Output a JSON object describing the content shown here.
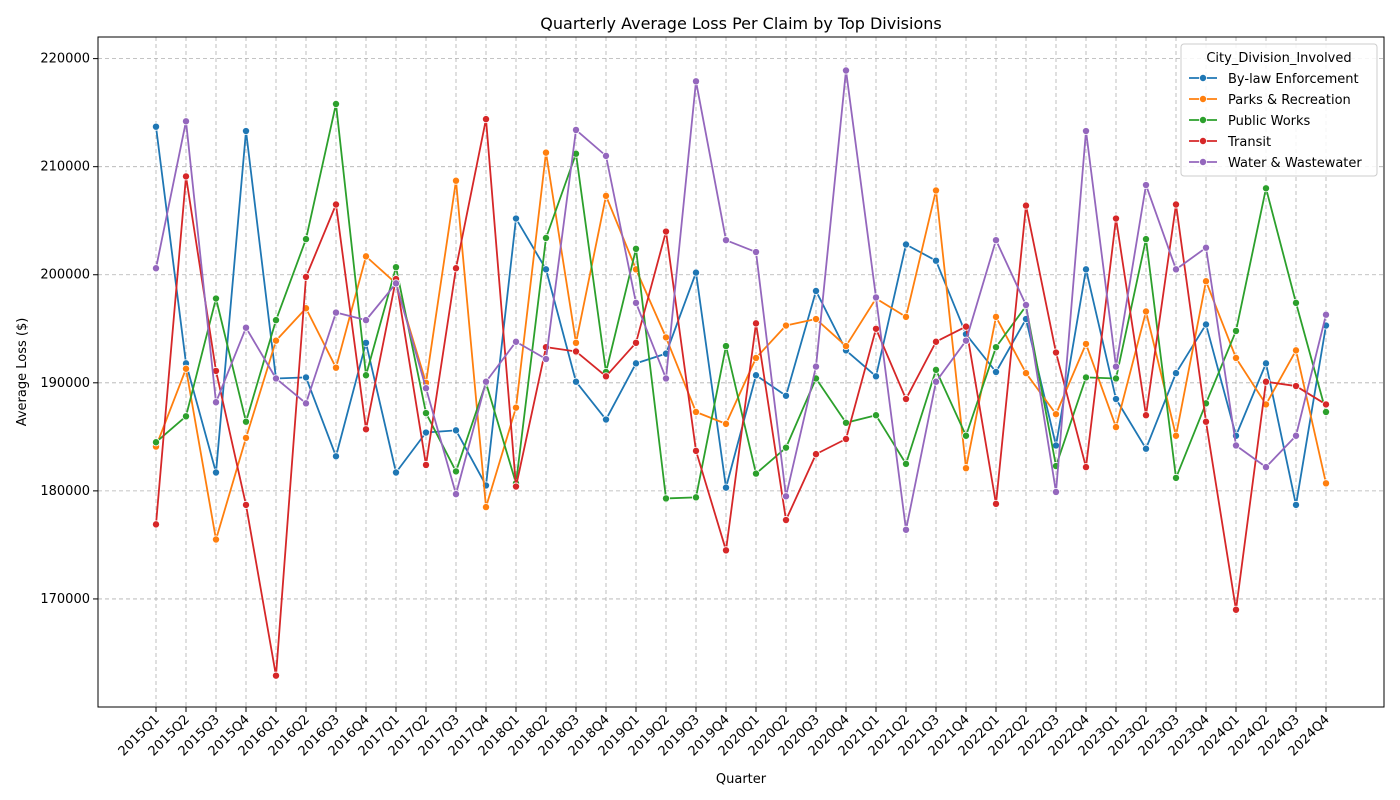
{
  "chart_data": {
    "type": "line",
    "title": "Quarterly Average Loss Per Claim by Top Divisions",
    "xlabel": "Quarter",
    "ylabel": "Average Loss ($)",
    "ylim": [
      160000,
      222000
    ],
    "yticks": [
      170000,
      180000,
      190000,
      200000,
      210000,
      220000
    ],
    "grid": true,
    "legend_title": "City_Division_Involved",
    "legend_position": "top-right",
    "categories": [
      "2015Q1",
      "2015Q2",
      "2015Q3",
      "2015Q4",
      "2016Q1",
      "2016Q2",
      "2016Q3",
      "2016Q4",
      "2017Q1",
      "2017Q2",
      "2017Q3",
      "2017Q4",
      "2018Q1",
      "2018Q2",
      "2018Q3",
      "2018Q4",
      "2019Q1",
      "2019Q2",
      "2019Q3",
      "2019Q4",
      "2020Q1",
      "2020Q2",
      "2020Q3",
      "2020Q4",
      "2021Q1",
      "2021Q2",
      "2021Q3",
      "2021Q4",
      "2022Q1",
      "2022Q2",
      "2022Q3",
      "2022Q4",
      "2023Q1",
      "2023Q2",
      "2023Q3",
      "2023Q4",
      "2024Q1",
      "2024Q2",
      "2024Q3",
      "2024Q4"
    ],
    "series": [
      {
        "name": "By-law Enforcement",
        "color": "#1f77b4",
        "values": [
          213700,
          191800,
          181700,
          213300,
          190400,
          190500,
          183200,
          193700,
          181700,
          185400,
          185600,
          180500,
          205200,
          200500,
          190100,
          186600,
          191800,
          192700,
          200200,
          180300,
          190700,
          188800,
          198500,
          193000,
          190600,
          202800,
          201300,
          194500,
          191000,
          195900,
          184200,
          200500,
          188500,
          183900,
          190900,
          195400,
          185100,
          191800,
          178700,
          195300
        ]
      },
      {
        "name": "Parks & Recreation",
        "color": "#ff7f0e",
        "values": [
          184100,
          191300,
          175500,
          184900,
          193900,
          196900,
          191400,
          201700,
          199200,
          190000,
          208700,
          178500,
          187700,
          211300,
          193700,
          207300,
          200500,
          194200,
          187300,
          186200,
          192300,
          195300,
          195900,
          193400,
          197800,
          196100,
          207800,
          182100,
          196100,
          190900,
          187100,
          193600,
          185900,
          196600,
          185100,
          199400,
          192300,
          188000,
          193000,
          180700
        ]
      },
      {
        "name": "Public Works",
        "color": "#2ca02c",
        "values": [
          184500,
          186900,
          197800,
          186400,
          195800,
          203300,
          215800,
          190700,
          200700,
          187200,
          181800,
          190000,
          180700,
          203400,
          211200,
          191000,
          202400,
          179300,
          179400,
          193400,
          181600,
          184000,
          190400,
          186300,
          187000,
          182500,
          191200,
          185100,
          193300,
          197100,
          182300,
          190500,
          190400,
          203300,
          181200,
          188100,
          194800,
          208000,
          197400,
          187300
        ]
      },
      {
        "name": "Transit",
        "color": "#d62728",
        "values": [
          176900,
          209100,
          191100,
          178700,
          162900,
          199800,
          206500,
          185700,
          199600,
          182400,
          200600,
          214400,
          180400,
          193300,
          192900,
          190600,
          193700,
          204000,
          183700,
          174500,
          195500,
          177300,
          183400,
          184800,
          195000,
          188500,
          193800,
          195200,
          178800,
          206400,
          192800,
          182200,
          205200,
          187000,
          206500,
          186400,
          169000,
          190100,
          189700,
          188000
        ]
      },
      {
        "name": "Water & Wastewater",
        "color": "#9467bd",
        "values": [
          200600,
          214200,
          188200,
          195100,
          190400,
          188100,
          196500,
          195800,
          199200,
          189500,
          179700,
          190100,
          193800,
          192200,
          213400,
          211000,
          197400,
          190400,
          217900,
          203200,
          202100,
          179500,
          191500,
          218900,
          197900,
          176400,
          190100,
          193900,
          203200,
          197200,
          179900,
          213300,
          191500,
          208300,
          200500,
          202500,
          184200,
          182200,
          185100,
          196300
        ]
      }
    ]
  }
}
